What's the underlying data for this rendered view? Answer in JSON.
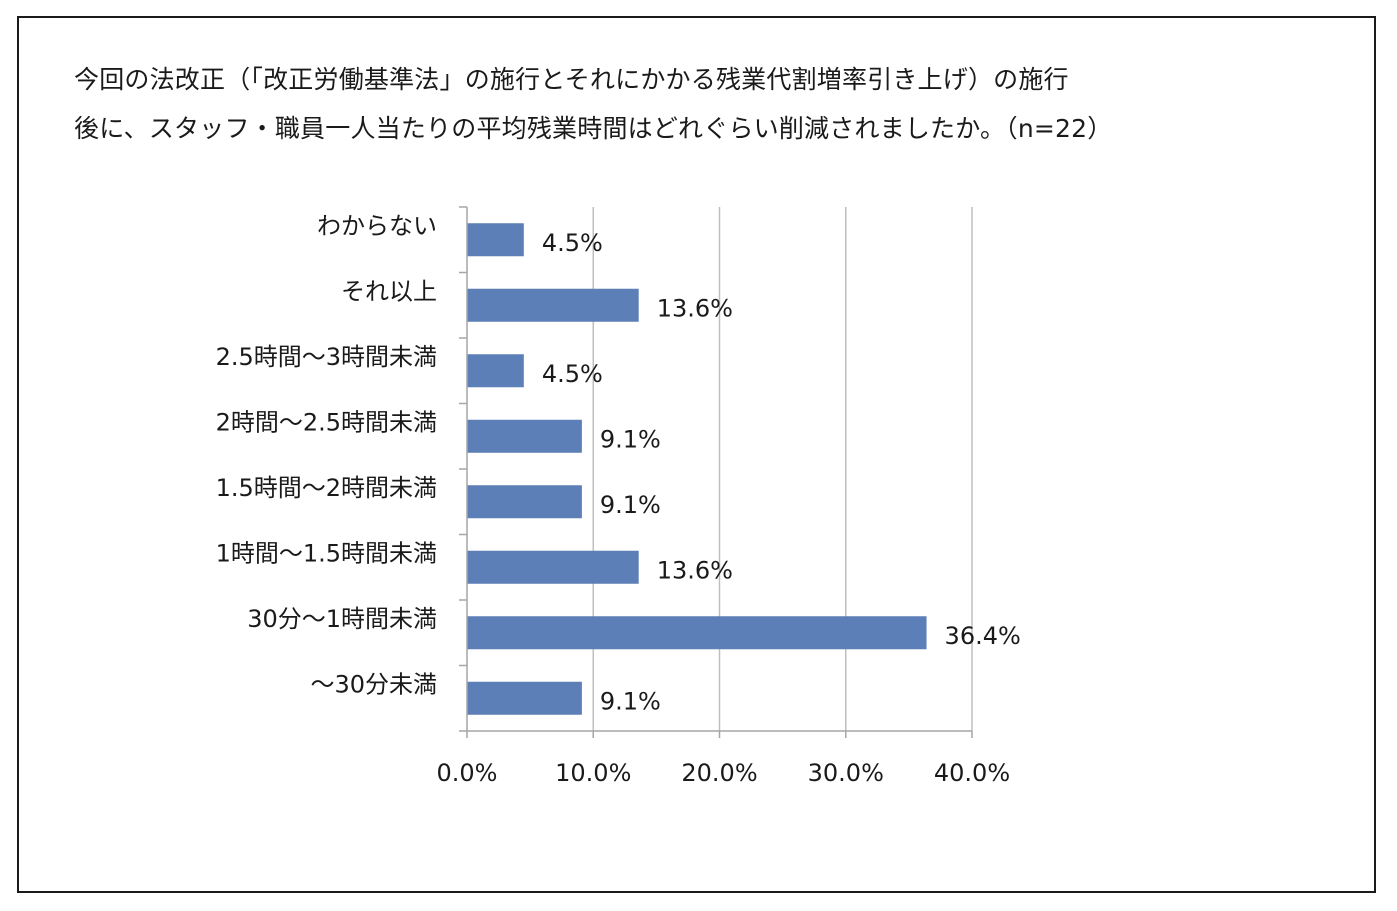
{
  "title_lines": [
    "今回の法改正（「改正労働基準法」の施行とそれにかかる残業代割増率引き上げ）の施行",
    "後に、スタッフ・職員一人当たりの平均残業時間はどれぐらい削減されましたか。（n=22）"
  ],
  "chart_data": {
    "type": "bar",
    "orientation": "horizontal",
    "categories": [
      "わからない",
      "それ以上",
      "2.5時間～3時間未満",
      "2時間～2.5時間未満",
      "1.5時間～2時間未満",
      "1時間～1.5時間未満",
      "30分～1時間未満",
      "～30分未満"
    ],
    "values": [
      4.5,
      13.6,
      4.5,
      9.1,
      9.1,
      13.6,
      36.4,
      9.1
    ],
    "value_labels": [
      "4.5%",
      "13.6%",
      "4.5%",
      "9.1%",
      "9.1%",
      "13.6%",
      "36.4%",
      "9.1%"
    ],
    "xlim": [
      0,
      40
    ],
    "x_ticks": [
      0,
      10,
      20,
      30,
      40
    ],
    "x_tick_labels": [
      "0.0%",
      "10.0%",
      "20.0%",
      "30.0%",
      "40.0%"
    ],
    "grid": true,
    "bar_color": "#5b7fb6",
    "grid_color": "#bfbfbf",
    "axis_color": "#a6a6a6"
  }
}
